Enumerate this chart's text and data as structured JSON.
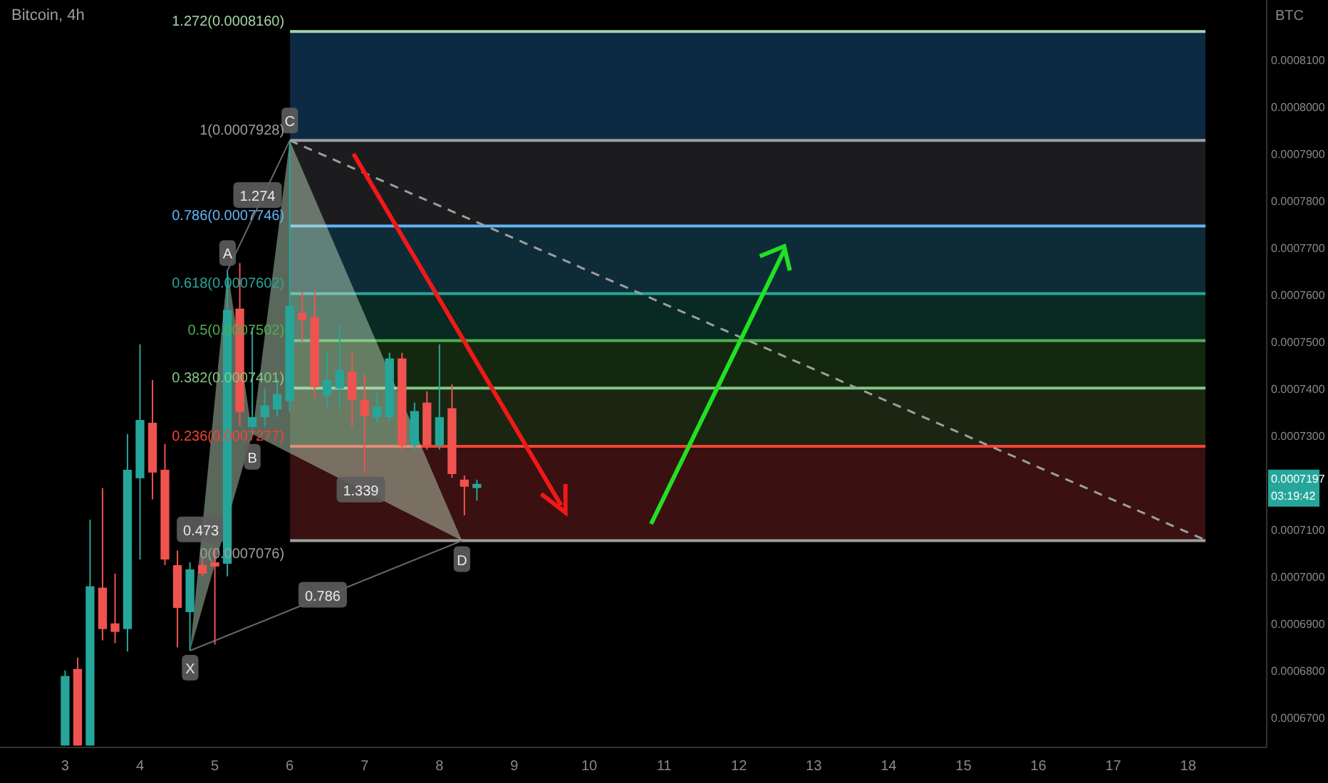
{
  "chart_data": {
    "type": "candlestick",
    "title": "Bitcoin, 4h",
    "ylabel": "BTC",
    "xlim": [
      2.13,
      19.05
    ],
    "xticks": [
      3,
      4,
      5,
      6,
      7,
      8,
      9,
      10,
      11,
      12,
      13,
      14,
      15,
      16,
      17,
      18
    ],
    "ylim": [
      0.0006636,
      0.0008227
    ],
    "yticks": [
      {
        "value": 0.00067,
        "label": "0.0006700"
      },
      {
        "value": 0.00068,
        "label": "0.0006800"
      },
      {
        "value": 0.00069,
        "label": "0.0006900"
      },
      {
        "value": 0.0007,
        "label": "0.0007000"
      },
      {
        "value": 0.00071,
        "label": "0.0007100"
      },
      {
        "value": 0.00073,
        "label": "0.0007300"
      },
      {
        "value": 0.00074,
        "label": "0.0007400"
      },
      {
        "value": 0.00075,
        "label": "0.0007500"
      },
      {
        "value": 0.00076,
        "label": "0.0007600"
      },
      {
        "value": 0.00077,
        "label": "0.0007700"
      },
      {
        "value": 0.00078,
        "label": "0.0007800"
      },
      {
        "value": 0.00079,
        "label": "0.0007900"
      },
      {
        "value": 0.0008,
        "label": "0.0008000"
      },
      {
        "value": 0.00081,
        "label": "0.0008100"
      }
    ],
    "grid": false,
    "x": [
      3,
      3.167,
      3.333,
      3.5,
      3.667,
      3.833,
      4,
      4.167,
      4.333,
      4.5,
      4.667,
      4.833,
      5,
      5.167,
      5.333,
      5.5,
      5.667,
      5.833,
      6,
      6.167,
      6.333,
      6.5,
      6.667,
      6.833,
      7,
      7.167,
      7.333,
      7.5,
      7.667,
      7.833,
      8,
      8.167,
      8.333,
      8.5
    ],
    "ohlc": [
      [
        0.000664,
        0.00068,
        0.000664,
        0.0006788
      ],
      [
        0.0006803,
        0.0006827,
        0.000664,
        0.000664
      ],
      [
        0.000664,
        0.0007121,
        0.000664,
        0.0006979
      ],
      [
        0.0006976,
        0.0007188,
        0.0006864,
        0.0006888
      ],
      [
        0.00069,
        0.0007006,
        0.0006858,
        0.0006882
      ],
      [
        0.0006888,
        0.0007303,
        0.000684,
        0.0007227
      ],
      [
        0.0007209,
        0.0007494,
        0.0007036,
        0.0007333
      ],
      [
        0.0007327,
        0.0007418,
        0.0007164,
        0.0007221
      ],
      [
        0.0007227,
        0.0007282,
        0.0007024,
        0.0007036
      ],
      [
        0.0007024,
        0.0007055,
        0.0006849,
        0.0006933
      ],
      [
        0.0006924,
        0.000703,
        0.0006842,
        0.0007015
      ],
      [
        0.0007024,
        0.000704,
        0.0007,
        0.0007006
      ],
      [
        0.000703,
        0.000706,
        0.0006855,
        0.0007021
      ],
      [
        0.0007027,
        0.0007652,
        0.0007,
        0.0007567
      ],
      [
        0.000757,
        0.0007667,
        0.000732,
        0.000735
      ],
      [
        0.0007318,
        0.000753,
        0.0007303,
        0.0007339
      ],
      [
        0.0007339,
        0.00074,
        0.000732,
        0.0007364
      ],
      [
        0.0007355,
        0.000742,
        0.000734,
        0.0007388
      ],
      [
        0.0007373,
        0.0007928,
        0.000735,
        0.0007576
      ],
      [
        0.0007561,
        0.0007606,
        0.00075,
        0.0007546
      ],
      [
        0.0007552,
        0.0007606,
        0.0007379,
        0.0007403
      ],
      [
        0.0007385,
        0.0007479,
        0.0007358,
        0.0007418
      ],
      [
        0.00074,
        0.0007536,
        0.0007355,
        0.0007439
      ],
      [
        0.0007436,
        0.0007479,
        0.0007318,
        0.0007376
      ],
      [
        0.0007376,
        0.000743,
        0.0007221,
        0.0007342
      ],
      [
        0.0007339,
        0.0007394,
        0.0007327,
        0.0007361
      ],
      [
        0.0007339,
        0.0007476,
        0.000733,
        0.0007464
      ],
      [
        0.0007464,
        0.0007476,
        0.000727,
        0.0007279
      ],
      [
        0.0007279,
        0.000737,
        0.000727,
        0.0007352
      ],
      [
        0.000737,
        0.0007394,
        0.000727,
        0.0007279
      ],
      [
        0.0007279,
        0.0007494,
        0.000727,
        0.0007339
      ],
      [
        0.0007358,
        0.0007409,
        0.000721,
        0.0007218
      ],
      [
        0.0007206,
        0.0007215,
        0.000713,
        0.0007191
      ],
      [
        0.0007188,
        0.0007206,
        0.0007161,
        0.0007197
      ]
    ],
    "series": [
      {
        "type": "line",
        "x": [
          6,
          18.25
        ],
        "values": [
          0.0007928,
          0.0007076
        ],
        "color": "#9e9e9e",
        "line_style": "dashed"
      }
    ],
    "ref_lines": [
      {
        "axis": "y",
        "value": 0.000816,
        "label": "1.272(0.0008160)",
        "color": "#a5d6a7"
      },
      {
        "axis": "y",
        "value": 0.0007928,
        "label": "1(0.0007928)",
        "color": "#9e9e9e"
      },
      {
        "axis": "y",
        "value": 0.0007746,
        "label": "0.786(0.0007746)",
        "color": "#64b5f6"
      },
      {
        "axis": "y",
        "value": 0.0007602,
        "label": "0.618(0.0007602)",
        "color": "#26a69a"
      },
      {
        "axis": "y",
        "value": 0.0007502,
        "label": "0.5(0.0007502)",
        "color": "#4caf50"
      },
      {
        "axis": "y",
        "value": 0.0007401,
        "label": "0.382(0.0007401)",
        "color": "#81c784"
      },
      {
        "axis": "y",
        "value": 0.0007277,
        "label": "0.236(0.0007277)",
        "color": "#f44336"
      },
      {
        "axis": "y",
        "value": 0.0007076,
        "label": "0(0.0007076)",
        "color": "#9e9e9e"
      }
    ],
    "bands": [
      {
        "axis": "y",
        "from": 0.0007928,
        "to": 0.000816,
        "color": "#0d2a44"
      },
      {
        "axis": "y",
        "from": 0.0007746,
        "to": 0.0007928,
        "color": "#1c1c1e"
      },
      {
        "axis": "y",
        "from": 0.0007602,
        "to": 0.0007746,
        "color": "#0e2c38"
      },
      {
        "axis": "y",
        "from": 0.0007502,
        "to": 0.0007602,
        "color": "#082a22"
      },
      {
        "axis": "y",
        "from": 0.0007401,
        "to": 0.0007502,
        "color": "#14280f"
      },
      {
        "axis": "y",
        "from": 0.0007277,
        "to": 0.0007401,
        "color": "#1a2612"
      },
      {
        "axis": "y",
        "from": 0.0007076,
        "to": 0.0007277,
        "color": "#3a1010"
      }
    ],
    "annotations": [
      {
        "text": "X",
        "x": 4.67,
        "y": 0.0006842
      },
      {
        "text": "A",
        "x": 5.17,
        "y": 0.0007652
      },
      {
        "text": "B",
        "x": 5.5,
        "y": 0.0007303
      },
      {
        "text": "C",
        "x": 6,
        "y": 0.0007928
      },
      {
        "text": "D",
        "x": 8.3,
        "y": 0.0007076
      },
      {
        "text": "0.473",
        "x": 4.815,
        "y": 0.00071
      },
      {
        "text": "1.274",
        "x": 5.57,
        "y": 0.0007812
      },
      {
        "text": "1.339",
        "x": 6.95,
        "y": 0.0007185
      },
      {
        "text": "0.786",
        "x": 6.44,
        "y": 0.0006961
      },
      "0.0007197",
      "03:19:42"
    ]
  }
}
